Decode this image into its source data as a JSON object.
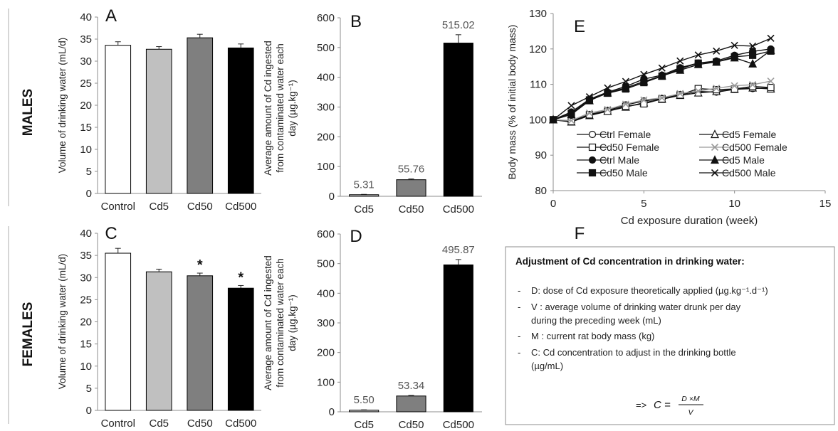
{
  "rows": {
    "males": "MALES",
    "females": "FEMALES"
  },
  "colors": {
    "Control": "#ffffff",
    "Cd5": "#c0c0c0",
    "Cd50": "#7f7f7f",
    "Cd500": "#000000",
    "axis": "#8c8c8c",
    "line_male": "#111111",
    "line_female": "#111111",
    "line_cd500_female": "#9a9a9a"
  },
  "chart_data": [
    {
      "panel": "A",
      "type": "bar",
      "categories": [
        "Control",
        "Cd5",
        "Cd50",
        "Cd500"
      ],
      "values": [
        33.6,
        32.7,
        35.3,
        33.0
      ],
      "errors": [
        0.8,
        0.6,
        0.8,
        0.9
      ],
      "ylabel": "Volume of drinking water (mL/d)",
      "ylim": [
        0,
        40
      ],
      "yticks": [
        "0",
        "5",
        "10",
        "15",
        "20",
        "25",
        "30",
        "35",
        "40"
      ],
      "stars": [
        "",
        "",
        "",
        ""
      ]
    },
    {
      "panel": "B",
      "type": "bar",
      "categories": [
        "Cd5",
        "Cd50",
        "Cd500"
      ],
      "values": [
        5.31,
        55.76,
        515.02
      ],
      "errors": [
        1.2,
        2.5,
        28
      ],
      "value_labels": [
        "5.31",
        "55.76",
        "515.02"
      ],
      "ylabel": [
        "Average amount of Cd ingested",
        "from contaminated water each",
        "day (µg.kg⁻¹)"
      ],
      "ylim": [
        0,
        600
      ],
      "yticks": [
        "0",
        "100",
        "200",
        "300",
        "400",
        "500",
        "600"
      ]
    },
    {
      "panel": "C",
      "type": "bar",
      "categories": [
        "Control",
        "Cd5",
        "Cd50",
        "Cd500"
      ],
      "values": [
        35.5,
        31.3,
        30.4,
        27.6
      ],
      "errors": [
        1.1,
        0.6,
        0.6,
        0.6
      ],
      "ylabel": "Volume of drinking water (mL/d)",
      "ylim": [
        0,
        40
      ],
      "yticks": [
        "0",
        "5",
        "10",
        "15",
        "20",
        "25",
        "30",
        "35",
        "40"
      ],
      "stars": [
        "",
        "",
        "*",
        "*"
      ]
    },
    {
      "panel": "D",
      "type": "bar",
      "categories": [
        "Cd5",
        "Cd50",
        "Cd500"
      ],
      "values": [
        5.5,
        53.34,
        495.87
      ],
      "errors": [
        1.2,
        2.0,
        18
      ],
      "value_labels": [
        "5.50",
        "53.34",
        "495.87"
      ],
      "ylabel": [
        "Average amount of Cd ingested",
        "from contaminated water each",
        "day (µg.kg⁻¹)"
      ],
      "ylim": [
        0,
        600
      ],
      "yticks": [
        "0",
        "100",
        "200",
        "300",
        "400",
        "500",
        "600"
      ]
    },
    {
      "panel": "E",
      "type": "line",
      "xlabel": "Cd exposure duration (week)",
      "ylabel": "Body mass (% of initial body mass)",
      "xlim": [
        0,
        15
      ],
      "ylim": [
        80,
        130
      ],
      "xticks": [
        "0",
        "5",
        "10",
        "15"
      ],
      "yticks": [
        "80",
        "90",
        "100",
        "110",
        "120",
        "130"
      ],
      "legend_position": "lower-right",
      "x": [
        0,
        1,
        2,
        3,
        4,
        5,
        6,
        7,
        8,
        9,
        10,
        11,
        12
      ],
      "series": [
        {
          "name": "Ctrl Female",
          "marker": "circle-open",
          "values": [
            100,
            99.6,
            101.5,
            102.6,
            104.2,
            105.3,
            106.0,
            107.1,
            108.0,
            107.8,
            108.6,
            108.8,
            109.0
          ]
        },
        {
          "name": "Cd5 Female",
          "marker": "triangle-open",
          "values": [
            100,
            99.4,
            101.2,
            102.4,
            103.6,
            104.8,
            105.8,
            106.9,
            107.6,
            108.0,
            108.6,
            109.0,
            108.7
          ]
        },
        {
          "name": "Cd50 Female",
          "marker": "square-open",
          "values": [
            100,
            99.5,
            101.4,
            102.4,
            103.8,
            104.5,
            105.9,
            107.0,
            108.8,
            108.5,
            108.7,
            109.4,
            109.1
          ]
        },
        {
          "name": "Cd500 Female",
          "marker": "x-gray",
          "values": [
            100,
            99.8,
            101.9,
            102.9,
            104.4,
            105.6,
            106.2,
            107.4,
            108.1,
            108.9,
            109.6,
            109.9,
            110.9
          ]
        },
        {
          "name": "Ctrl Male",
          "marker": "circle-filled",
          "values": [
            100,
            102.2,
            105.8,
            107.8,
            109.4,
            111.5,
            112.6,
            114.7,
            116.0,
            116.6,
            118.2,
            119.3,
            120.0
          ]
        },
        {
          "name": "Cd5 Male",
          "marker": "triangle-filled",
          "values": [
            100,
            101.5,
            105.4,
            107.6,
            109.0,
            110.8,
            112.4,
            114.0,
            115.6,
            116.3,
            117.5,
            115.8,
            119.6
          ]
        },
        {
          "name": "Cd50 Male",
          "marker": "square-filled",
          "values": [
            100,
            101.8,
            105.6,
            107.5,
            108.7,
            110.5,
            112.3,
            114.4,
            116.0,
            116.3,
            117.8,
            118.2,
            119.4
          ]
        },
        {
          "name": "Cd500 Male",
          "marker": "x-black",
          "values": [
            100,
            104.0,
            106.5,
            109.0,
            110.8,
            112.8,
            114.6,
            116.6,
            118.3,
            119.4,
            121.0,
            120.8,
            123.0
          ]
        }
      ]
    }
  ],
  "panel_f": {
    "label": "F",
    "title": "Adjustment of Cd concentration in drinking water:",
    "items": [
      [
        "D: dose of Cd exposure theoretically applied (µg.kg⁻¹.d⁻¹)"
      ],
      [
        "V : average volume of drinking water drunk per day",
        "during the preceding week (mL)"
      ],
      [
        "M : current rat body mass (kg)"
      ],
      [
        "C: Cd concentration to adjust in the drinking bottle",
        "(µg/mL)"
      ]
    ],
    "formula_prefix": "=> ",
    "formula_lhs": "C = ",
    "formula_num": "D ×M",
    "formula_den": "V"
  }
}
